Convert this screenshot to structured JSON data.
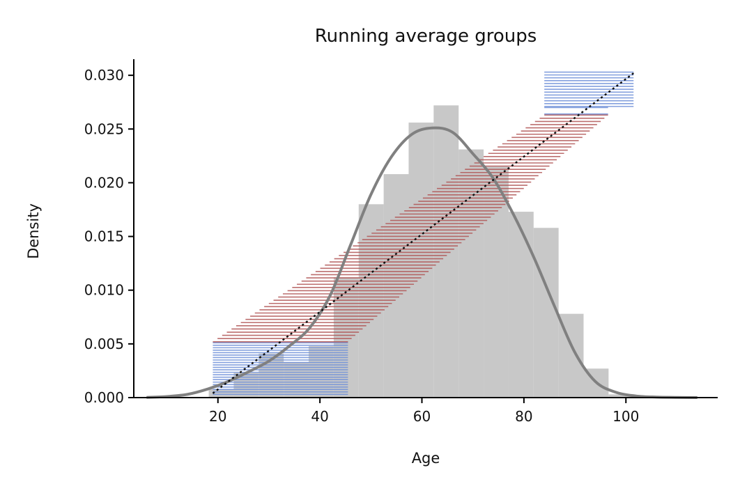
{
  "chart_data": {
    "type": "bar",
    "title": "Running average groups",
    "xlabel": "Age",
    "ylabel": "Density",
    "xlim": [
      3.5,
      118
    ],
    "ylim": [
      0,
      0.0315
    ],
    "x_ticks": [
      20,
      40,
      60,
      80,
      100
    ],
    "y_ticks": [
      0.0,
      0.005,
      0.01,
      0.015,
      0.02,
      0.025,
      0.03
    ],
    "y_tick_labels": [
      "0.000",
      "0.005",
      "0.010",
      "0.015",
      "0.020",
      "0.025",
      "0.030"
    ],
    "grid": false,
    "colors": {
      "histogram": "#c8c8c8",
      "kde": "#808080",
      "group_blue": "#6f8fd8",
      "group_red": "#b05555",
      "running_average": "#111111"
    },
    "histogram": {
      "bin_edges": [
        18.2,
        23.1,
        28.0,
        32.9,
        37.8,
        42.7,
        47.6,
        52.5,
        57.4,
        62.3,
        67.2,
        72.1,
        77.0,
        81.9,
        86.8,
        91.7,
        96.6,
        101.5
      ],
      "densities": [
        0.0008,
        0.0023,
        0.0041,
        0.0033,
        0.0048,
        0.0112,
        0.018,
        0.0208,
        0.0256,
        0.0272,
        0.0231,
        0.0215,
        0.0173,
        0.0158,
        0.0078,
        0.0027,
        0.0003
      ]
    },
    "kde": {
      "x": [
        6,
        10,
        14,
        18,
        22,
        26,
        30,
        34,
        38,
        42,
        46,
        50,
        54,
        58,
        62,
        66,
        70,
        74,
        78,
        82,
        86,
        90,
        94,
        98,
        102,
        106,
        110,
        114
      ],
      "density": [
        2e-05,
        0.0001,
        0.0003,
        0.0008,
        0.0015,
        0.0024,
        0.0034,
        0.0048,
        0.0065,
        0.0095,
        0.0142,
        0.0189,
        0.0224,
        0.0245,
        0.0251,
        0.0247,
        0.0227,
        0.0204,
        0.017,
        0.013,
        0.0085,
        0.0042,
        0.0015,
        0.0005,
        0.00015,
        5e-05,
        2e-05,
        0.0
      ]
    },
    "running_average": {
      "x": [
        19,
        101.5
      ],
      "y": [
        0.0004,
        0.0302
      ]
    },
    "groups": {
      "blue_low": {
        "x_range": [
          19,
          45.5
        ],
        "y_range": [
          0.0003,
          0.0051
        ],
        "lines": 22
      },
      "red_mid": {
        "x_start": [
          19,
          84
        ],
        "x_end": [
          45.5,
          96.5
        ],
        "y_range": [
          0.0052,
          0.0263
        ],
        "lines": 72
      },
      "blue_high": {
        "x_range_bottom": [
          84,
          96.5
        ],
        "x_range_top": [
          84,
          101.5
        ],
        "y_bottom": [
          0.0264,
          0.027
        ],
        "y_top": [
          0.0271,
          0.0303
        ],
        "lines": 15
      }
    }
  }
}
